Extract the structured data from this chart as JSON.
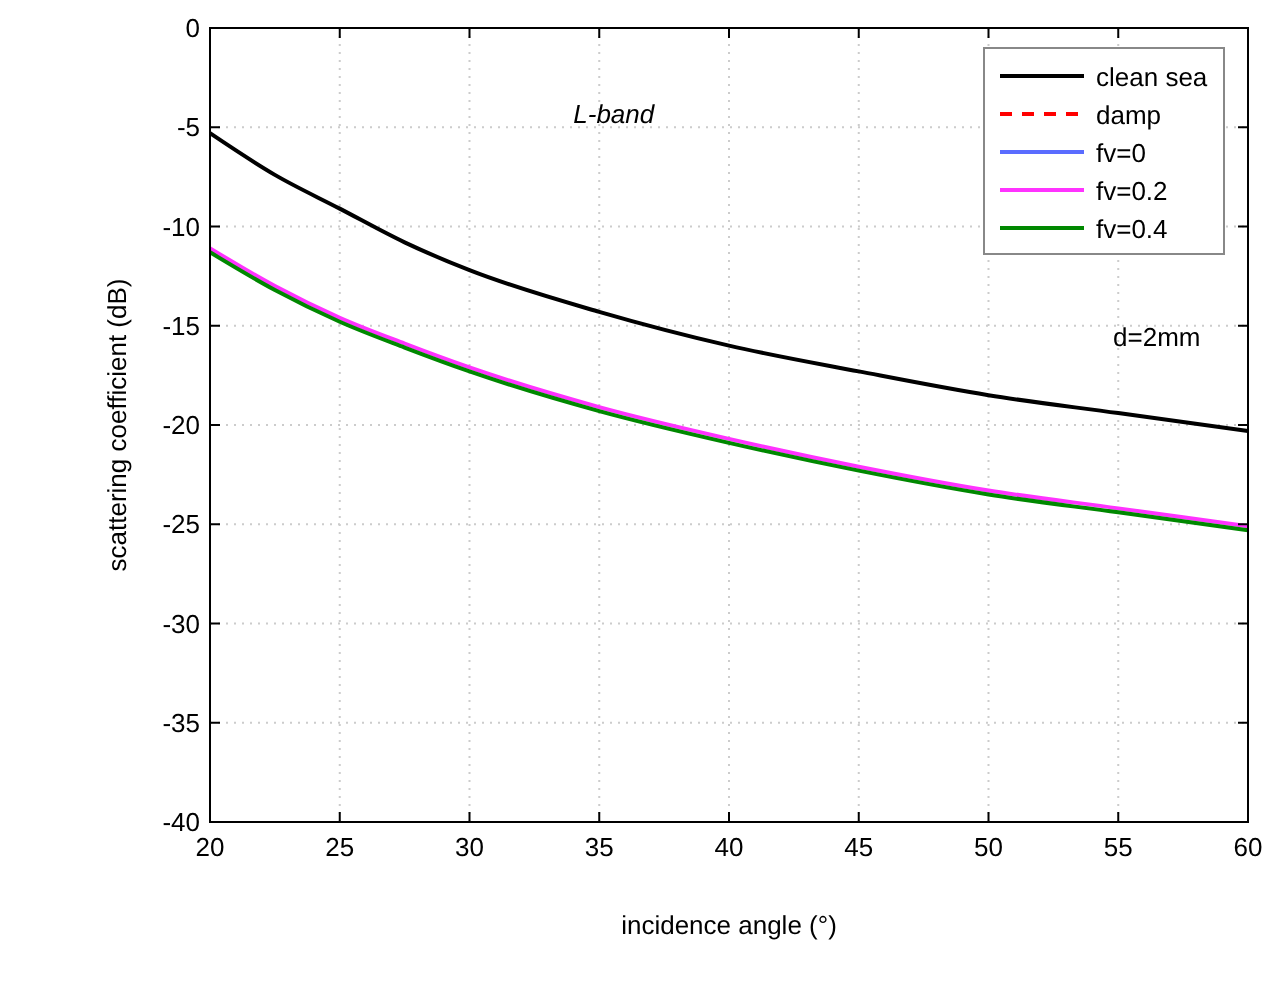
{
  "chart_data": {
    "type": "line",
    "xlabel": "incidence angle (°)",
    "ylabel": "scattering coefficient (dB)",
    "annotations": [
      "L-band",
      "d=2mm"
    ],
    "x": [
      20,
      22.5,
      25,
      27.5,
      30,
      35,
      40,
      45,
      50,
      55,
      60
    ],
    "xlim": [
      20,
      60
    ],
    "xticks": [
      20,
      25,
      30,
      35,
      40,
      45,
      50,
      55,
      60
    ],
    "ylim": [
      -40,
      0
    ],
    "yticks": [
      -40,
      -35,
      -30,
      -25,
      -20,
      -15,
      -10,
      -5,
      0
    ],
    "grid": true,
    "legend": "top right",
    "series": [
      {
        "name": "clean sea",
        "color": "#000000",
        "line_style": "solid",
        "values": [
          -5.3,
          -7.4,
          -9.1,
          -10.8,
          -12.2,
          -14.3,
          -16.0,
          -17.3,
          -18.5,
          -19.4,
          -20.3
        ]
      },
      {
        "name": "damp",
        "color": "#ff0000",
        "line_style": "dashed",
        "values": [
          null,
          null,
          null,
          null,
          null,
          null,
          null,
          null,
          null,
          null,
          null
        ]
      },
      {
        "name": "fv=0",
        "color": "#5a6cff",
        "line_style": "solid",
        "values": [
          null,
          null,
          null,
          null,
          null,
          null,
          null,
          null,
          null,
          null,
          null
        ]
      },
      {
        "name": "fv=0.2",
        "color": "#ff33ff",
        "line_style": "solid",
        "values": [
          -11.1,
          -13.0,
          -14.6,
          -15.9,
          -17.1,
          -19.1,
          -20.7,
          -22.1,
          -23.3,
          -24.2,
          -25.1
        ]
      },
      {
        "name": "fv=0.4",
        "color": "#008800",
        "line_style": "solid",
        "values": [
          -11.3,
          -13.2,
          -14.8,
          -16.1,
          -17.3,
          -19.3,
          -20.9,
          -22.3,
          -23.5,
          -24.4,
          -25.3
        ]
      }
    ]
  }
}
